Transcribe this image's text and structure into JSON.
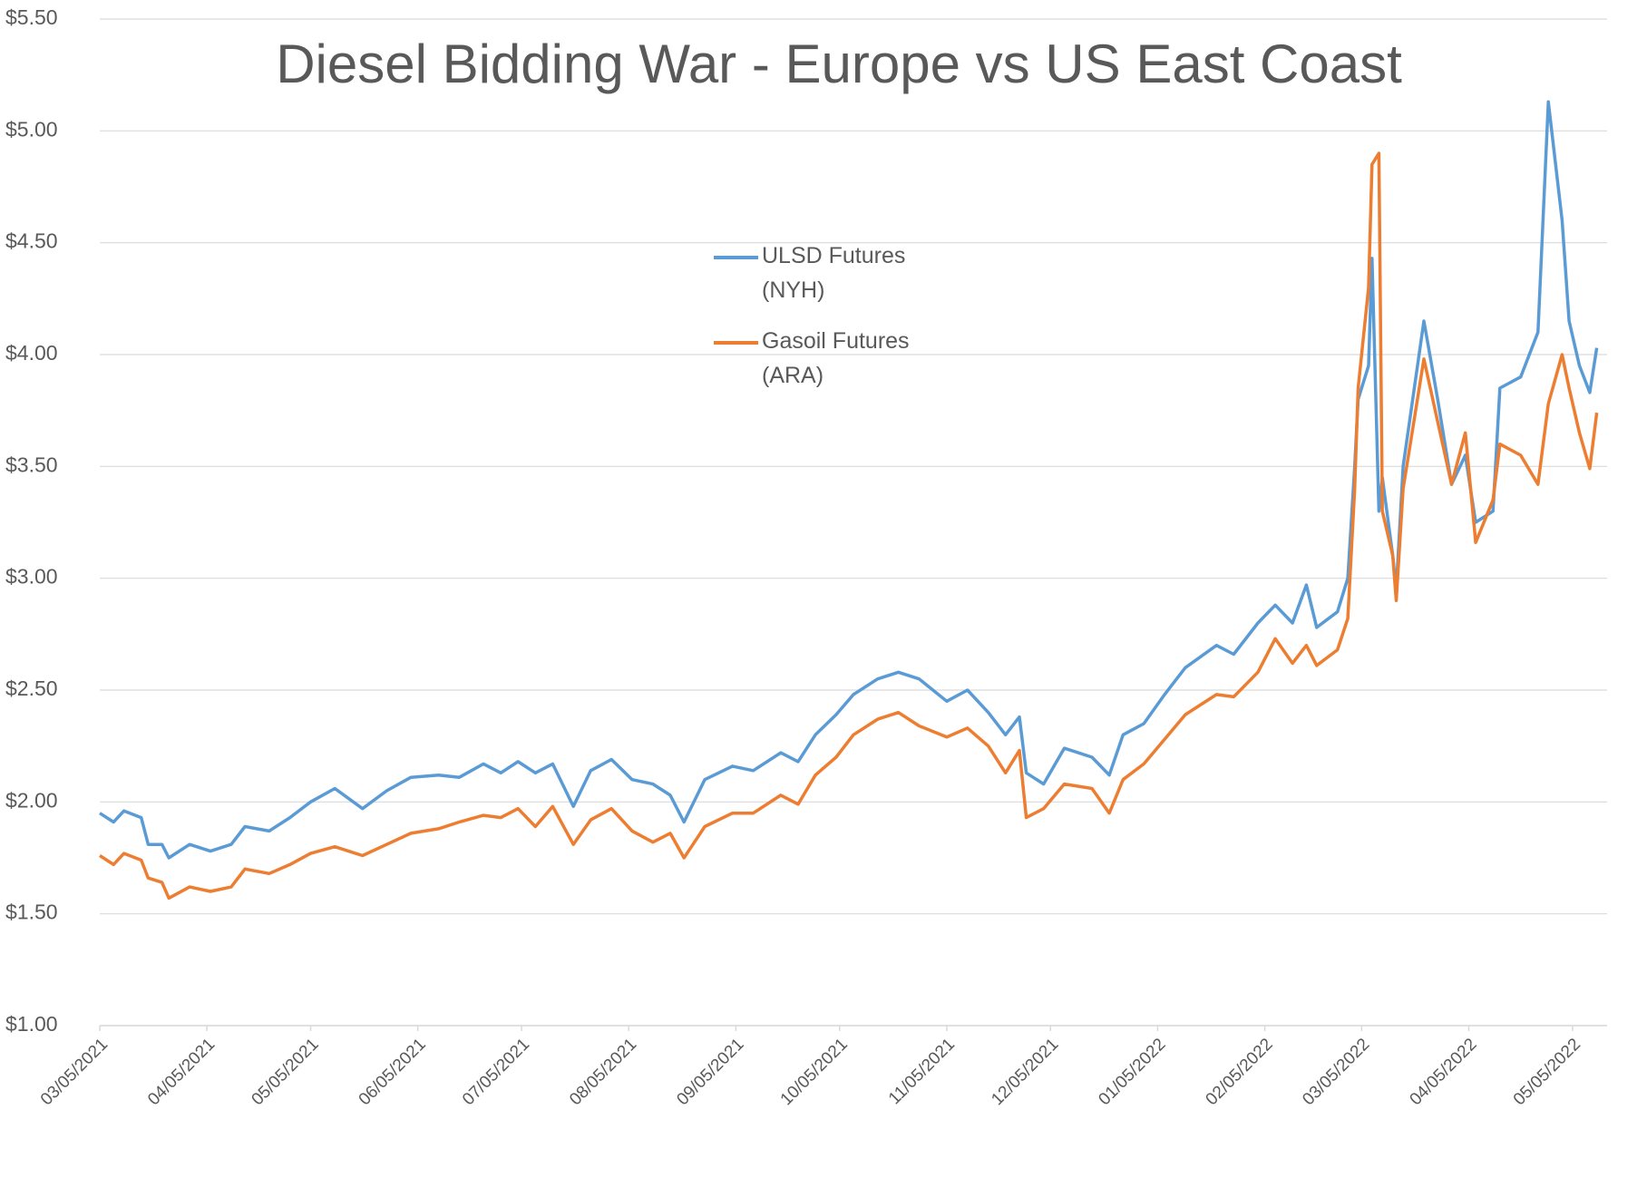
{
  "chart_data": {
    "type": "line",
    "title": "Diesel Bidding War - Europe vs US East Coast",
    "x": [
      "03/05/2021",
      "03/09/2021",
      "03/12/2021",
      "03/17/2021",
      "03/19/2021",
      "03/23/2021",
      "03/25/2021",
      "03/31/2021",
      "04/06/2021",
      "04/12/2021",
      "04/16/2021",
      "04/23/2021",
      "04/29/2021",
      "05/05/2021",
      "05/12/2021",
      "05/20/2021",
      "05/27/2021",
      "06/03/2021",
      "06/11/2021",
      "06/17/2021",
      "06/24/2021",
      "06/29/2021",
      "07/04/2021",
      "07/09/2021",
      "07/14/2021",
      "07/20/2021",
      "07/25/2021",
      "07/31/2021",
      "08/06/2021",
      "08/12/2021",
      "08/17/2021",
      "08/21/2021",
      "08/27/2021",
      "09/04/2021",
      "09/10/2021",
      "09/18/2021",
      "09/23/2021",
      "09/28/2021",
      "10/04/2021",
      "10/09/2021",
      "10/16/2021",
      "10/22/2021",
      "10/28/2021",
      "11/05/2021",
      "11/11/2021",
      "11/17/2021",
      "11/22/2021",
      "11/26/2021",
      "11/28/2021",
      "12/03/2021",
      "12/09/2021",
      "12/17/2021",
      "12/22/2021",
      "12/26/2021",
      "01/01/2022",
      "01/07/2022",
      "01/13/2022",
      "01/22/2022",
      "01/27/2022",
      "02/03/2022",
      "02/08/2022",
      "02/13/2022",
      "02/17/2022",
      "02/20/2022",
      "02/26/2022",
      "03/01/2022",
      "03/03/2022",
      "03/04/2022",
      "03/07/2022",
      "03/08/2022",
      "03/10/2022",
      "03/11/2022",
      "03/14/2022",
      "03/15/2022",
      "03/17/2022",
      "03/23/2022",
      "03/27/2022",
      "03/31/2022",
      "04/04/2022",
      "04/07/2022",
      "04/12/2022",
      "04/14/2022",
      "04/20/2022",
      "04/25/2022",
      "04/28/2022",
      "05/02/2022",
      "05/04/2022",
      "05/07/2022",
      "05/10/2022",
      "05/12/2022"
    ],
    "series": [
      {
        "name": "ULSD Futures (NYH)",
        "color": "#5b9bd5",
        "values": [
          1.95,
          1.91,
          1.96,
          1.93,
          1.81,
          1.81,
          1.75,
          1.81,
          1.78,
          1.81,
          1.89,
          1.87,
          1.93,
          2.0,
          2.06,
          1.97,
          2.05,
          2.11,
          2.12,
          2.11,
          2.17,
          2.13,
          2.18,
          2.13,
          2.17,
          1.98,
          2.14,
          2.19,
          2.1,
          2.08,
          2.03,
          1.91,
          2.1,
          2.16,
          2.14,
          2.22,
          2.18,
          2.3,
          2.39,
          2.48,
          2.55,
          2.58,
          2.55,
          2.45,
          2.5,
          2.4,
          2.3,
          2.38,
          2.13,
          2.08,
          2.24,
          2.2,
          2.12,
          2.3,
          2.35,
          2.48,
          2.6,
          2.7,
          2.66,
          2.8,
          2.88,
          2.8,
          2.97,
          2.78,
          2.85,
          3.0,
          3.5,
          3.8,
          3.95,
          4.43,
          3.3,
          3.45,
          3.1,
          2.95,
          3.5,
          4.15,
          3.8,
          3.42,
          3.55,
          3.25,
          3.3,
          3.85,
          3.9,
          4.1,
          5.13,
          4.6,
          4.15,
          3.95,
          3.83,
          4.03
        ]
      },
      {
        "name": "Gasoil Futures (ARA)",
        "color": "#ed7d31",
        "values": [
          1.76,
          1.72,
          1.77,
          1.74,
          1.66,
          1.64,
          1.57,
          1.62,
          1.6,
          1.62,
          1.7,
          1.68,
          1.72,
          1.77,
          1.8,
          1.76,
          1.81,
          1.86,
          1.88,
          1.91,
          1.94,
          1.93,
          1.97,
          1.89,
          1.98,
          1.81,
          1.92,
          1.97,
          1.87,
          1.82,
          1.86,
          1.75,
          1.89,
          1.95,
          1.95,
          2.03,
          1.99,
          2.12,
          2.2,
          2.3,
          2.37,
          2.4,
          2.34,
          2.29,
          2.33,
          2.25,
          2.13,
          2.23,
          1.93,
          1.97,
          2.08,
          2.06,
          1.95,
          2.1,
          2.17,
          2.28,
          2.39,
          2.48,
          2.47,
          2.58,
          2.73,
          2.62,
          2.7,
          2.61,
          2.68,
          2.82,
          3.4,
          3.85,
          4.3,
          4.85,
          4.9,
          3.3,
          3.1,
          2.9,
          3.4,
          3.98,
          3.7,
          3.42,
          3.65,
          3.16,
          3.35,
          3.6,
          3.55,
          3.42,
          3.78,
          4.0,
          3.85,
          3.65,
          3.49,
          3.74
        ]
      }
    ],
    "xlim": [
      "03/05/2021",
      "05/15/2022"
    ],
    "xticks": [
      "03/05/2021",
      "04/05/2021",
      "05/05/2021",
      "06/05/2021",
      "07/05/2021",
      "08/05/2021",
      "09/05/2021",
      "10/05/2021",
      "11/05/2021",
      "12/05/2021",
      "01/05/2022",
      "02/05/2022",
      "03/05/2022",
      "04/05/2022",
      "05/05/2022"
    ],
    "ylim": [
      1,
      5.5
    ],
    "yticks": [
      {
        "value": 1,
        "label": "$1.00"
      },
      {
        "value": 1.5,
        "label": "$1.50"
      },
      {
        "value": 2,
        "label": "$2.00"
      },
      {
        "value": 2.5,
        "label": "$2.50"
      },
      {
        "value": 3,
        "label": "$3.00"
      },
      {
        "value": 3.5,
        "label": "$3.50"
      },
      {
        "value": 4,
        "label": "$4.00"
      },
      {
        "value": 4.5,
        "label": "$4.50"
      },
      {
        "value": 5,
        "label": "$5.00"
      },
      {
        "value": 5.5,
        "label": "$5.50"
      }
    ],
    "grid": true
  }
}
